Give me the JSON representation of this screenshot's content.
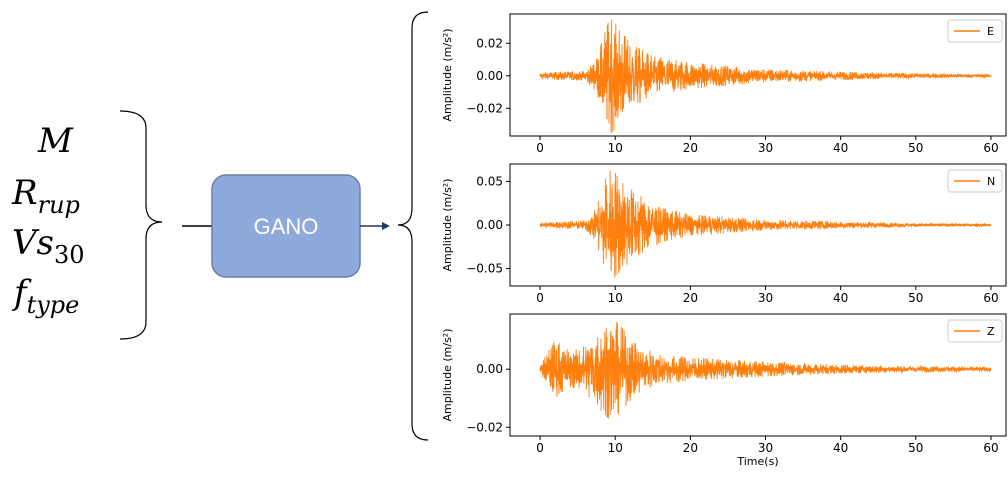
{
  "inputs": {
    "M": {
      "base": "M",
      "sub": ""
    },
    "Rrup": {
      "base": "R",
      "sub": "rup"
    },
    "Vs30": {
      "base": "Vs",
      "sub": "30"
    },
    "ftype": {
      "base": "f",
      "sub": "type"
    }
  },
  "model": {
    "label": "GANO"
  },
  "colors": {
    "trace": "#ff7f0e",
    "box_fill": "#8ea9db",
    "box_stroke": "#6b7fa8",
    "arrow": "#1f3864"
  },
  "chart_data": [
    {
      "type": "line",
      "legend": "E",
      "legend_position": "top-right",
      "ylabel": "Amplitude (m/s²)",
      "xlim": [
        -4,
        62
      ],
      "ylim": [
        -0.037,
        0.038
      ],
      "xticks": [
        0,
        10,
        20,
        30,
        40,
        50,
        60
      ],
      "xtick_labels": [
        "0",
        "10",
        "20",
        "30",
        "40",
        "50",
        "60"
      ],
      "yticks": [
        0.02,
        0.0,
        -0.02
      ],
      "ytick_labels": [
        "0.02",
        "0.00",
        "−0.02"
      ],
      "envelope_time_s": [
        0,
        6,
        7.5,
        8.5,
        9.3,
        10.5,
        12,
        15,
        20,
        30,
        40,
        50,
        60
      ],
      "envelope_amplitude": [
        0.002,
        0.003,
        0.01,
        0.025,
        0.036,
        0.03,
        0.02,
        0.012,
        0.008,
        0.004,
        0.0025,
        0.0015,
        0.001
      ]
    },
    {
      "type": "line",
      "legend": "N",
      "legend_position": "top-right",
      "ylabel": "Amplitude (m/s²)",
      "xlim": [
        -4,
        62
      ],
      "ylim": [
        -0.07,
        0.07
      ],
      "xticks": [
        0,
        10,
        20,
        30,
        40,
        50,
        60
      ],
      "xtick_labels": [
        "0",
        "10",
        "20",
        "30",
        "40",
        "50",
        "60"
      ],
      "yticks": [
        0.05,
        0.0,
        -0.05
      ],
      "ytick_labels": [
        "0.05",
        "0.00",
        "−0.05"
      ],
      "envelope_time_s": [
        0,
        6,
        7.5,
        8.5,
        9.5,
        11,
        13,
        16,
        20,
        30,
        40,
        50,
        60
      ],
      "envelope_amplitude": [
        0.003,
        0.005,
        0.02,
        0.05,
        0.065,
        0.05,
        0.035,
        0.02,
        0.012,
        0.006,
        0.004,
        0.002,
        0.0015
      ]
    },
    {
      "type": "line",
      "legend": "Z",
      "legend_position": "top-right",
      "xlabel": "Time(s)",
      "ylabel": "Amplitude (m/s²)",
      "xlim": [
        -4,
        62
      ],
      "ylim": [
        -0.023,
        0.019
      ],
      "xticks": [
        0,
        10,
        20,
        30,
        40,
        50,
        60
      ],
      "xtick_labels": [
        "0",
        "10",
        "20",
        "30",
        "40",
        "50",
        "60"
      ],
      "yticks": [
        0.0,
        -0.02
      ],
      "ytick_labels": [
        "0.00",
        "−0.02"
      ],
      "envelope_time_s": [
        0,
        1,
        2,
        4,
        6,
        8,
        9.5,
        11,
        13,
        16,
        20,
        30,
        40,
        50,
        60
      ],
      "envelope_amplitude": [
        0.001,
        0.006,
        0.01,
        0.006,
        0.008,
        0.014,
        0.018,
        0.014,
        0.008,
        0.005,
        0.004,
        0.0025,
        0.0015,
        0.001,
        0.0008
      ]
    }
  ]
}
